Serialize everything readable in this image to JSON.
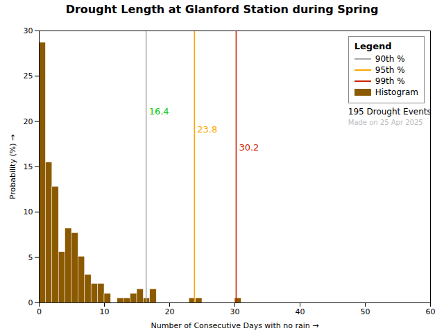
{
  "chart_data": {
    "type": "histogram",
    "title": "Drought Length at Glanford Station during Spring",
    "xlabel": "Number of Consecutive Days with no rain",
    "ylabel": "Probability (%)",
    "name": "Histogram",
    "color": "#8B5A00",
    "bins": [
      0,
      1,
      2,
      3,
      4,
      5,
      6,
      7,
      8,
      9,
      10,
      11,
      12,
      13,
      14,
      15,
      16,
      17,
      18,
      19,
      20,
      21,
      22,
      23,
      24,
      25,
      26,
      27,
      28,
      29,
      30,
      31,
      32,
      33,
      34,
      35,
      36,
      37,
      38,
      39,
      40,
      41,
      42,
      43,
      44,
      45,
      46,
      47,
      48,
      49,
      50,
      51,
      52,
      53,
      54,
      55,
      56,
      57,
      58,
      59,
      60
    ],
    "values": [
      28.7,
      15.5,
      12.8,
      5.6,
      8.2,
      7.7,
      5.1,
      3.1,
      2.1,
      2.1,
      1.0,
      0.0,
      0.5,
      0.5,
      1.0,
      1.5,
      0.5,
      1.5,
      0.0,
      0.0,
      0.0,
      0.0,
      0.0,
      0.5,
      0.5,
      0.0,
      0.0,
      0.0,
      0.0,
      0.0,
      0.5,
      0.0,
      0.0,
      0.0,
      0.0,
      0.0,
      0.0,
      0.0,
      0.0,
      0.0,
      0.0,
      0.0,
      0.0,
      0.0,
      0.0,
      0.0,
      0.0,
      0.0,
      0.0,
      0.0,
      0.0,
      0.0,
      0.0,
      0.0,
      0.0,
      0.0,
      0.0,
      0.0,
      0.0,
      0.0
    ],
    "xlim": [
      0,
      60
    ],
    "xticks": [
      0,
      10,
      20,
      30,
      40,
      50,
      60
    ],
    "ylim": [
      0,
      30
    ],
    "yticks": [
      0,
      5,
      10,
      15,
      20,
      25,
      30
    ],
    "grid": false,
    "legend": "upper right",
    "legend_title": "Legend",
    "lines": [
      {
        "name": "90th %",
        "x": 16.4,
        "color": "#AAAAAA"
      },
      {
        "name": "95th %",
        "x": 23.8,
        "color": "#FFA500"
      },
      {
        "name": "99th %",
        "x": 30.2,
        "color": "#CC2200"
      }
    ],
    "annotations": [
      {
        "text": "16.4",
        "x": 16.4,
        "y": 21.5,
        "color": "#00CC00"
      },
      {
        "text": "23.8",
        "x": 23.8,
        "y": 19.5,
        "color": "#FFA500"
      },
      {
        "text": "30.2",
        "x": 30.2,
        "y": 17.5,
        "color": "#CC2200"
      }
    ],
    "legend_notes": [
      {
        "text": "195 Drought Events",
        "color": "#000000"
      },
      {
        "text": "Made on 25 Apr 2025",
        "color": "#BBBBBB"
      }
    ]
  }
}
